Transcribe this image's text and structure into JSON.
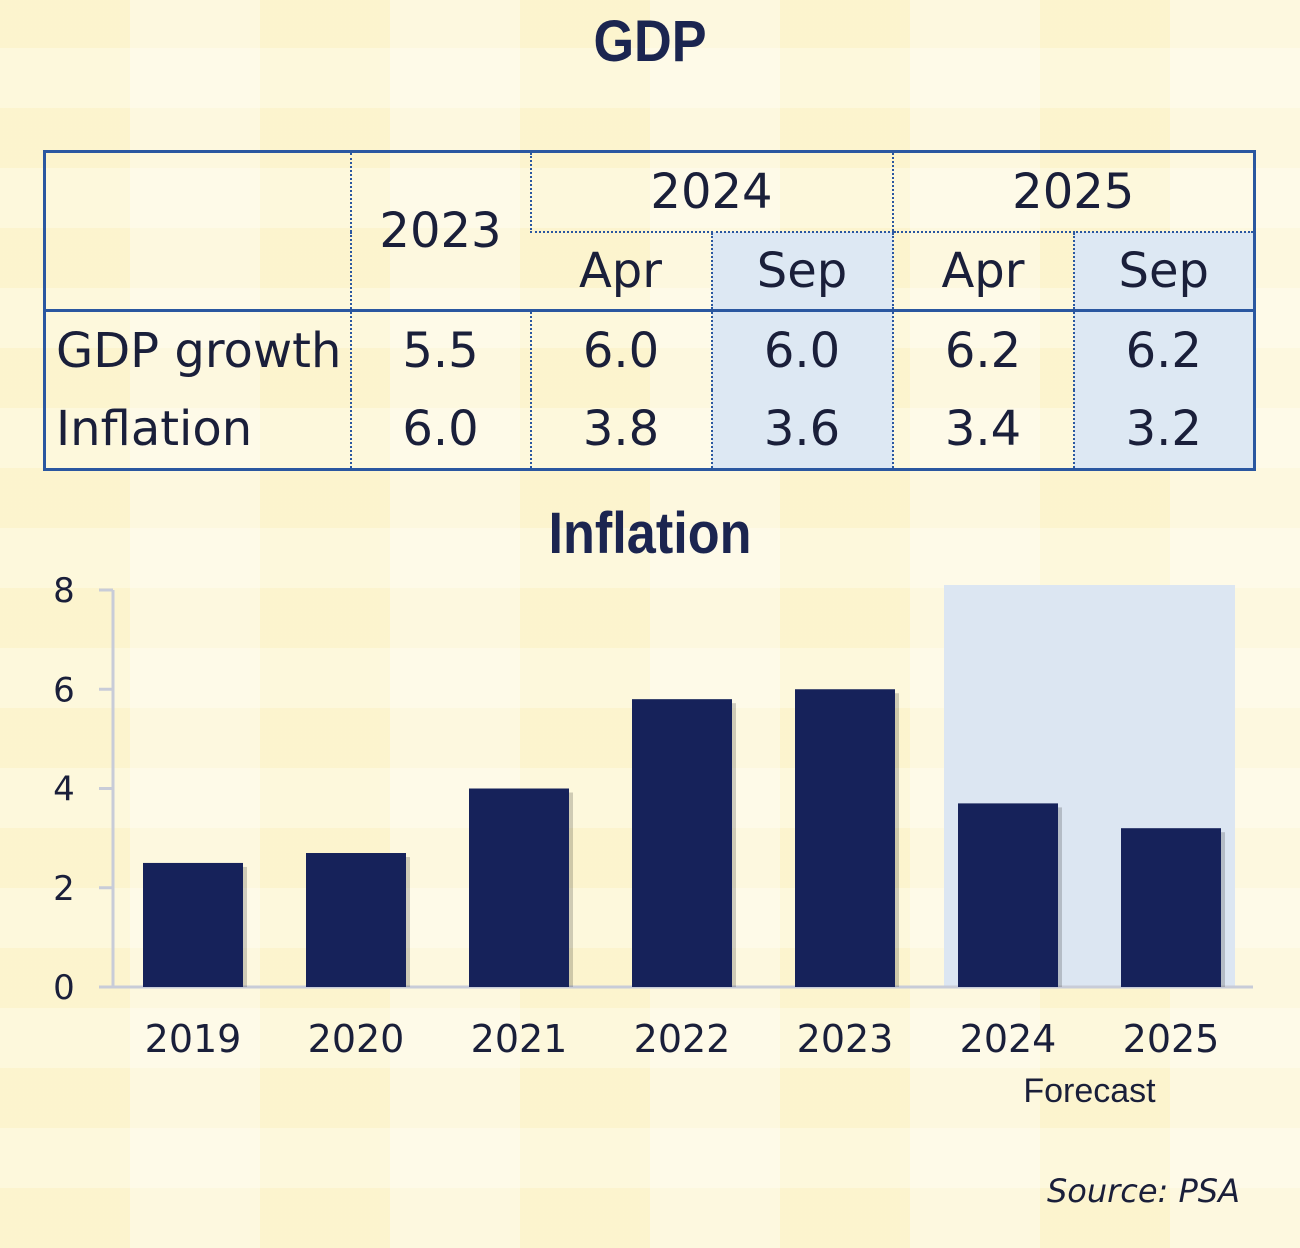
{
  "gdp_title": "GDP",
  "table": {
    "year_2023": "2023",
    "year_2024": "2024",
    "year_2025": "2025",
    "sub": [
      "Apr",
      "Sep",
      "Apr",
      "Sep"
    ],
    "rows": [
      {
        "label": "GDP growth",
        "values": [
          "5.5",
          "6.0",
          "6.0",
          "6.2",
          "6.2"
        ]
      },
      {
        "label": "Inflation",
        "values": [
          "6.0",
          "3.8",
          "3.6",
          "3.4",
          "3.2"
        ]
      }
    ]
  },
  "source": "Source: PSA",
  "chart_data": {
    "type": "bar",
    "title": "Inflation",
    "xlabel": "",
    "ylabel": "",
    "categories": [
      "2019",
      "2020",
      "2021",
      "2022",
      "2023",
      "2024",
      "2025"
    ],
    "values": [
      2.5,
      2.7,
      4.0,
      5.8,
      6.0,
      3.7,
      3.2
    ],
    "ylim": [
      0,
      8
    ],
    "yticks": [
      "0",
      "2",
      "4",
      "6",
      "8"
    ],
    "grid": false,
    "forecast_label": "Forecast",
    "forecast_categories": [
      "2024",
      "2025"
    ],
    "colors": {
      "bar": "#16225a",
      "forecast_shade": "#dce6f2",
      "axis": "#c8ccd8"
    }
  }
}
